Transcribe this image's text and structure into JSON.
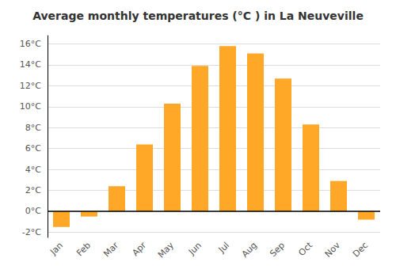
{
  "chart_data": {
    "type": "bar",
    "title": "Average monthly temperatures (°C ) in La Neuveville",
    "categories": [
      "Jan",
      "Feb",
      "Mar",
      "Apr",
      "May",
      "Jun",
      "Jul",
      "Aug",
      "Sep",
      "Oct",
      "Nov",
      "Dec"
    ],
    "values": [
      -1.5,
      -0.5,
      2.4,
      6.4,
      10.3,
      13.9,
      15.8,
      15.1,
      12.7,
      8.3,
      2.9,
      -0.8
    ],
    "color": "#FFA726",
    "ylim": [
      -2.5,
      16.8
    ],
    "yticks": [
      {
        "value": -2,
        "label": "-2°C"
      },
      {
        "value": 0,
        "label": "0°C"
      },
      {
        "value": 2,
        "label": "2°C"
      },
      {
        "value": 4,
        "label": "4°C"
      },
      {
        "value": 6,
        "label": "6°C"
      },
      {
        "value": 8,
        "label": "8°C"
      },
      {
        "value": 10,
        "label": "10°C"
      },
      {
        "value": 12,
        "label": "12°C"
      },
      {
        "value": 14,
        "label": "14°C"
      },
      {
        "value": 16,
        "label": "16°C"
      }
    ],
    "grid": true
  }
}
